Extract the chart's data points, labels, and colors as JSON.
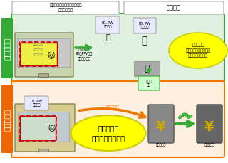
{
  "title_top_left": "ウイルスによって表示される\n偽の入力画面",
  "title_top_right": "送金処理",
  "label_top_section": "従来の手口",
  "label_bottom_section": "新しい手口",
  "text_virus_send": "ウイルスが\nID、PW等を\n犯罪者に送信",
  "text_manual_transfer": "犯罪者が、\n窃取した情報を用いて\n手動で送金する。",
  "text_connect_top": "口座に\n接続",
  "text_connect_label": "口座に接続",
  "text_auto_transfer": "ウイルスが\n自動で送金する。",
  "label_victim_account": "被害者口座",
  "label_criminal_account": "犯罪者口座",
  "bg_color": "#f0f0f0",
  "top_section_bg": "#dff0df",
  "bottom_section_bg": "#fdf0e0",
  "top_border_color": "#33aa33",
  "bottom_border_color": "#ee7700",
  "label_top_bg": "#33aa33",
  "label_bottom_bg": "#ee6600",
  "arrow_green": "#33aa33",
  "arrow_orange": "#ee7700",
  "yellow_bubble_color": "#ffff00",
  "yellow_bubble_border": "#cccc00",
  "header_bg": "#ffffff",
  "header_border": "#aaaaaa",
  "screen_bg": "#c8d8e8",
  "monitor_outer": "#888866",
  "monitor_bg_top": "#c8d4b0",
  "monitor_bg_bot": "#d8cc90",
  "connect_box_bg": "#ccffcc",
  "connect_box_border": "#33aa33",
  "server_color": "#888888",
  "account_color": "#555555"
}
